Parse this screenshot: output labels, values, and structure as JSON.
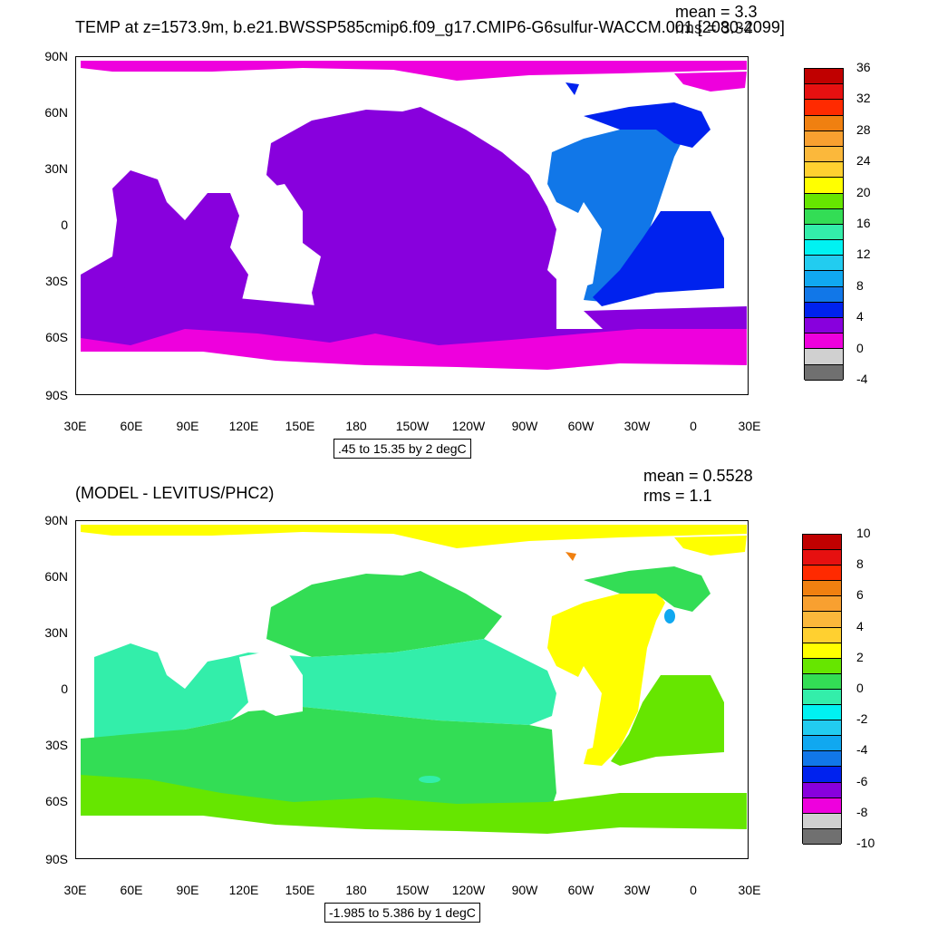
{
  "panel_top": {
    "title": "TEMP at z=1573.9m, b.e21.BWSSP585cmip6.f09_g17.CMIP6-G6sulfur-WACCM.001 [2080-2099]",
    "mean_text": "mean = 3.3",
    "rms_text": "rms = 3.34",
    "range_text": ".45 to 15.35 by 2 degC",
    "colorbar_labels": [
      "36",
      "32",
      "28",
      "24",
      "20",
      "16",
      "12",
      "8",
      "4",
      "0",
      "-4"
    ],
    "colorbar_colors": [
      "#c00000",
      "#e61010",
      "#ff2a00",
      "#f08010",
      "#f8a030",
      "#fbb83b",
      "#ffd030",
      "#ffff00",
      "#66e600",
      "#33dd55",
      "#33eeaa",
      "#00f2f2",
      "#22ccf0",
      "#10a8f0",
      "#1177e8",
      "#0022ee",
      "#8800dd",
      "#ee00dd",
      "#d0d0d0",
      "#707070"
    ]
  },
  "panel_bottom": {
    "title": "(MODEL - LEVITUS/PHC2)",
    "mean_text": "mean = 0.5528",
    "rms_text": "rms = 1.1",
    "range_text": "-1.985 to 5.386 by 1 degC",
    "colorbar_labels": [
      "10",
      "8",
      "6",
      "4",
      "2",
      "0",
      "-2",
      "-4",
      "-6",
      "-8",
      "-10"
    ],
    "colorbar_colors": [
      "#c00000",
      "#e61010",
      "#ff2a00",
      "#f08010",
      "#f8a030",
      "#fbb83b",
      "#ffd030",
      "#ffff00",
      "#66e600",
      "#33dd55",
      "#33eeaa",
      "#00f2f2",
      "#22ccf0",
      "#10a8f0",
      "#1177e8",
      "#0022ee",
      "#8800dd",
      "#ee00dd",
      "#d0d0d0",
      "#707070"
    ]
  },
  "axes": {
    "lat_labels": [
      "90N",
      "60N",
      "30N",
      "0",
      "30S",
      "60S",
      "90S"
    ],
    "lon_labels": [
      "30E",
      "60E",
      "90E",
      "120E",
      "150E",
      "180",
      "150W",
      "120W",
      "90W",
      "60W",
      "30W",
      "0",
      "30E"
    ]
  },
  "colors": {
    "top_dominant": "#8800dd",
    "top_high_lat": "#ee00dd",
    "top_atlantic": "#1177e8",
    "top_south_atlantic": "#0022ee",
    "top_north_atlantic": "#0022ee",
    "bottom_pacific": "#33dd55",
    "bottom_indian": "#33eeaa",
    "bottom_atlantic": "#ffff00",
    "bottom_south": "#66e600",
    "bottom_arctic": "#ffff00"
  }
}
